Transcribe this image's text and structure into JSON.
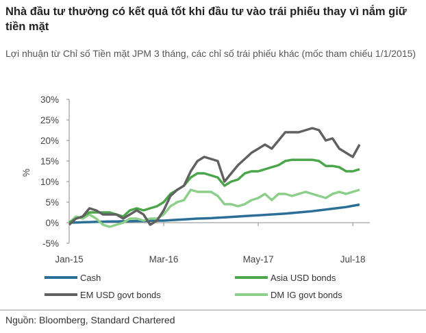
{
  "title": "Nhà đầu tư thường có kết quả tốt khi đầu tư vào trái phiếu thay vì nắm giữ tiền mặt",
  "subtitle": "Lợi nhuận từ Chỉ số Tiền mặt JPM 3 tháng, các chỉ số trái phiếu khác (mốc tham chiếu 1/1/2015)",
  "source": "Nguồn: Bloomberg, Standard Chartered",
  "chart_data": {
    "type": "line",
    "ylabel": "%",
    "xlabel": "",
    "ylim": [
      -5,
      30
    ],
    "yticks": [
      "-5%",
      "0%",
      "5%",
      "10%",
      "15%",
      "20%",
      "25%",
      "30%"
    ],
    "ytick_values": [
      -5,
      0,
      5,
      10,
      15,
      20,
      25,
      30
    ],
    "xticks": [
      "Jan-15",
      "Mar-16",
      "May-17",
      "Jul-18"
    ],
    "xtick_values": [
      "2015-01",
      "2016-03",
      "2017-05",
      "2018-07"
    ],
    "grid": false,
    "legend": "bottom",
    "x": [
      "2015-01",
      "2015-02",
      "2015-03",
      "2015-04",
      "2015-05",
      "2015-06",
      "2015-07",
      "2015-08",
      "2015-09",
      "2015-10",
      "2015-11",
      "2015-12",
      "2016-01",
      "2016-02",
      "2016-03",
      "2016-04",
      "2016-05",
      "2016-06",
      "2016-07",
      "2016-08",
      "2016-09",
      "2016-10",
      "2016-11",
      "2016-12",
      "2017-01",
      "2017-02",
      "2017-03",
      "2017-04",
      "2017-05",
      "2017-06",
      "2017-07",
      "2017-08",
      "2017-09",
      "2017-10",
      "2017-11",
      "2017-12",
      "2018-01",
      "2018-02",
      "2018-03",
      "2018-04",
      "2018-05",
      "2018-06",
      "2018-07",
      "2018-08"
    ],
    "series": [
      {
        "name": "Cash",
        "color": "#2b6e96",
        "values": [
          0,
          0.05,
          0.1,
          0.15,
          0.2,
          0.25,
          0.3,
          0.3,
          0.35,
          0.35,
          0.4,
          0.4,
          0.45,
          0.5,
          0.5,
          0.6,
          0.7,
          0.8,
          0.9,
          1.0,
          1.05,
          1.1,
          1.2,
          1.3,
          1.4,
          1.5,
          1.6,
          1.7,
          1.8,
          1.9,
          2.0,
          2.1,
          2.2,
          2.35,
          2.5,
          2.65,
          2.8,
          3.0,
          3.2,
          3.4,
          3.6,
          3.8,
          4.1,
          4.4
        ]
      },
      {
        "name": "Asia USD bonds",
        "color": "#4ba64b",
        "values": [
          0,
          1,
          1.5,
          2.5,
          2.5,
          2.5,
          2.5,
          2,
          1.5,
          3,
          3.5,
          3,
          3.5,
          4,
          5,
          7,
          8,
          9,
          11,
          12,
          12,
          11.5,
          11,
          9,
          10,
          10.5,
          12,
          12.5,
          12.5,
          13,
          13.5,
          14,
          15,
          15.3,
          15.3,
          15.3,
          15.3,
          15,
          13.8,
          13.8,
          13.5,
          12.5,
          12.5,
          13
        ]
      },
      {
        "name": "EM USD govt bonds",
        "color": "#616161",
        "values": [
          -0.5,
          1,
          1.5,
          3.5,
          3,
          2,
          2,
          2,
          1,
          2,
          3,
          2,
          -0.5,
          0.5,
          3,
          6.5,
          8,
          9,
          12.5,
          15,
          16,
          15.5,
          15,
          10,
          12,
          14,
          15.5,
          17,
          18,
          19,
          18,
          20,
          22,
          22,
          22,
          22.5,
          23,
          22.5,
          20,
          20.5,
          18,
          17,
          16,
          19
        ]
      },
      {
        "name": "DM IG govt bonds",
        "color": "#8ccf8a",
        "values": [
          0,
          1.5,
          1,
          2,
          1,
          -0.5,
          -1,
          -0.5,
          0,
          1,
          1,
          0.5,
          1,
          1,
          2,
          4,
          5,
          5.5,
          8,
          7.5,
          7.5,
          7.5,
          6.5,
          4.5,
          4.5,
          4,
          4.5,
          5.5,
          6,
          7,
          5.5,
          7,
          7,
          6.5,
          7,
          7.5,
          7,
          6.5,
          6,
          7,
          7.5,
          7,
          7.5,
          8
        ]
      }
    ]
  }
}
